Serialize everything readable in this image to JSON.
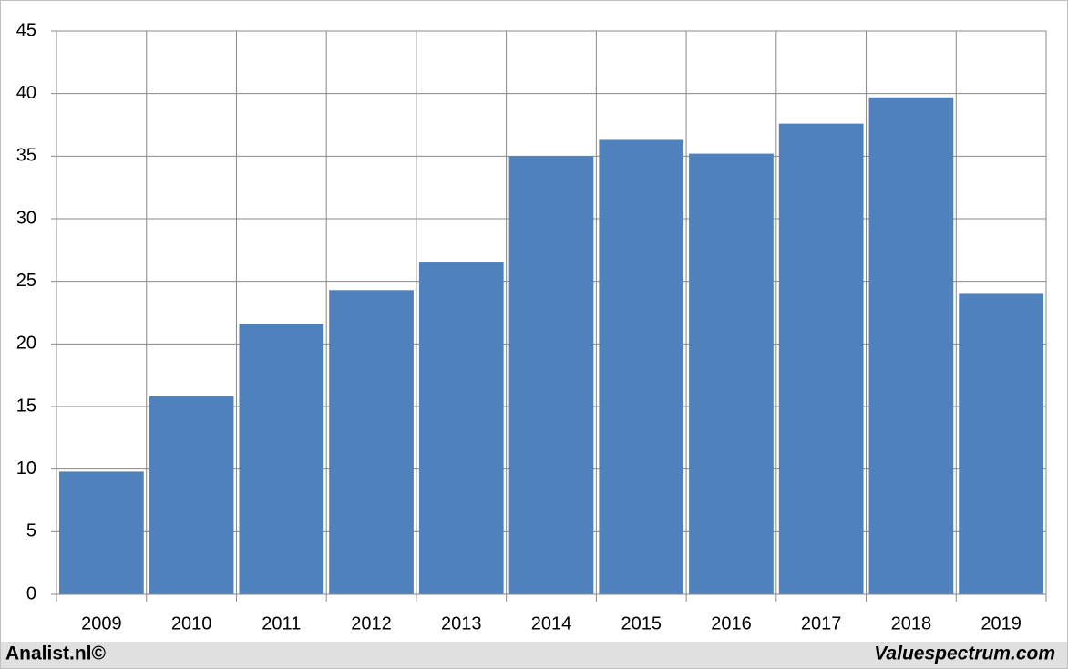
{
  "chart_data": {
    "type": "bar",
    "categories": [
      "2009",
      "2010",
      "2011",
      "2012",
      "2013",
      "2014",
      "2015",
      "2016",
      "2017",
      "2018",
      "2019"
    ],
    "values": [
      9.8,
      15.8,
      21.6,
      24.3,
      26.5,
      35.0,
      36.3,
      35.2,
      37.6,
      39.7,
      24.0
    ],
    "color": "#4f81bd",
    "ylim": [
      0,
      45
    ],
    "yticks": [
      0,
      5,
      10,
      15,
      20,
      25,
      30,
      35,
      40,
      45
    ],
    "grid": true,
    "credits": [
      "Analist.nl©",
      "Valuespectrum.com"
    ]
  }
}
